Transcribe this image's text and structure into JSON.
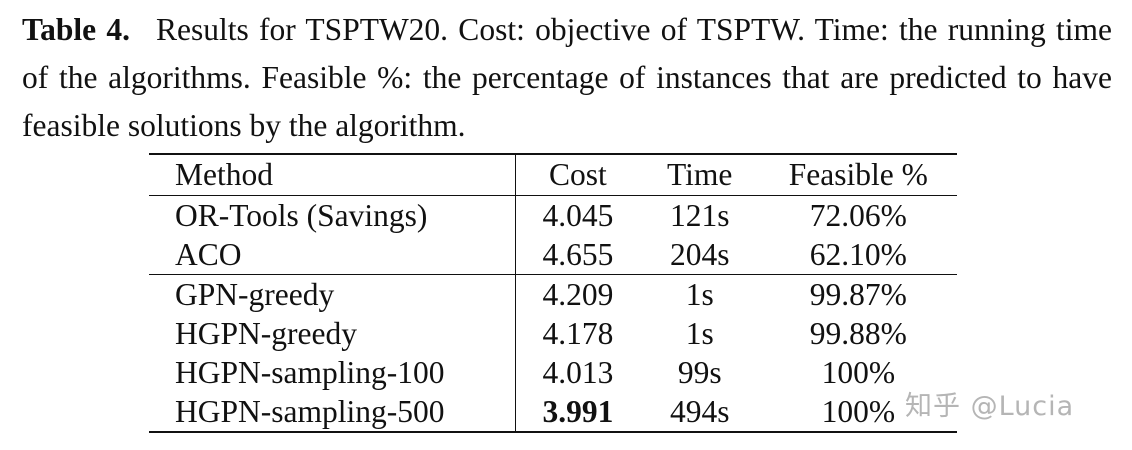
{
  "caption": {
    "label": "Table 4.",
    "text": "Results for TSPTW20. Cost: objective of TSPTW. Time: the running time of the algorithms. Feasible %: the percentage of instances that are predicted to have feasible solutions by the algorithm."
  },
  "table": {
    "headers": [
      "Method",
      "Cost",
      "Time",
      "Feasible %"
    ],
    "group1": [
      {
        "method": "OR-Tools (Savings)",
        "cost": "4.045",
        "time": "121s",
        "feasible": "72.06%"
      },
      {
        "method": "ACO",
        "cost": "4.655",
        "time": "204s",
        "feasible": "62.10%"
      }
    ],
    "group2": [
      {
        "method": "GPN-greedy",
        "cost": "4.209",
        "time": "1s",
        "feasible": "99.87%"
      },
      {
        "method": "HGPN-greedy",
        "cost": "4.178",
        "time": "1s",
        "feasible": "99.88%"
      },
      {
        "method": "HGPN-sampling-100",
        "cost": "4.013",
        "time": "99s",
        "feasible": "100%"
      },
      {
        "method": "HGPN-sampling-500",
        "cost": "3.991",
        "time": "494s",
        "feasible": "100%"
      }
    ]
  },
  "watermark": "知乎 @Lucia"
}
